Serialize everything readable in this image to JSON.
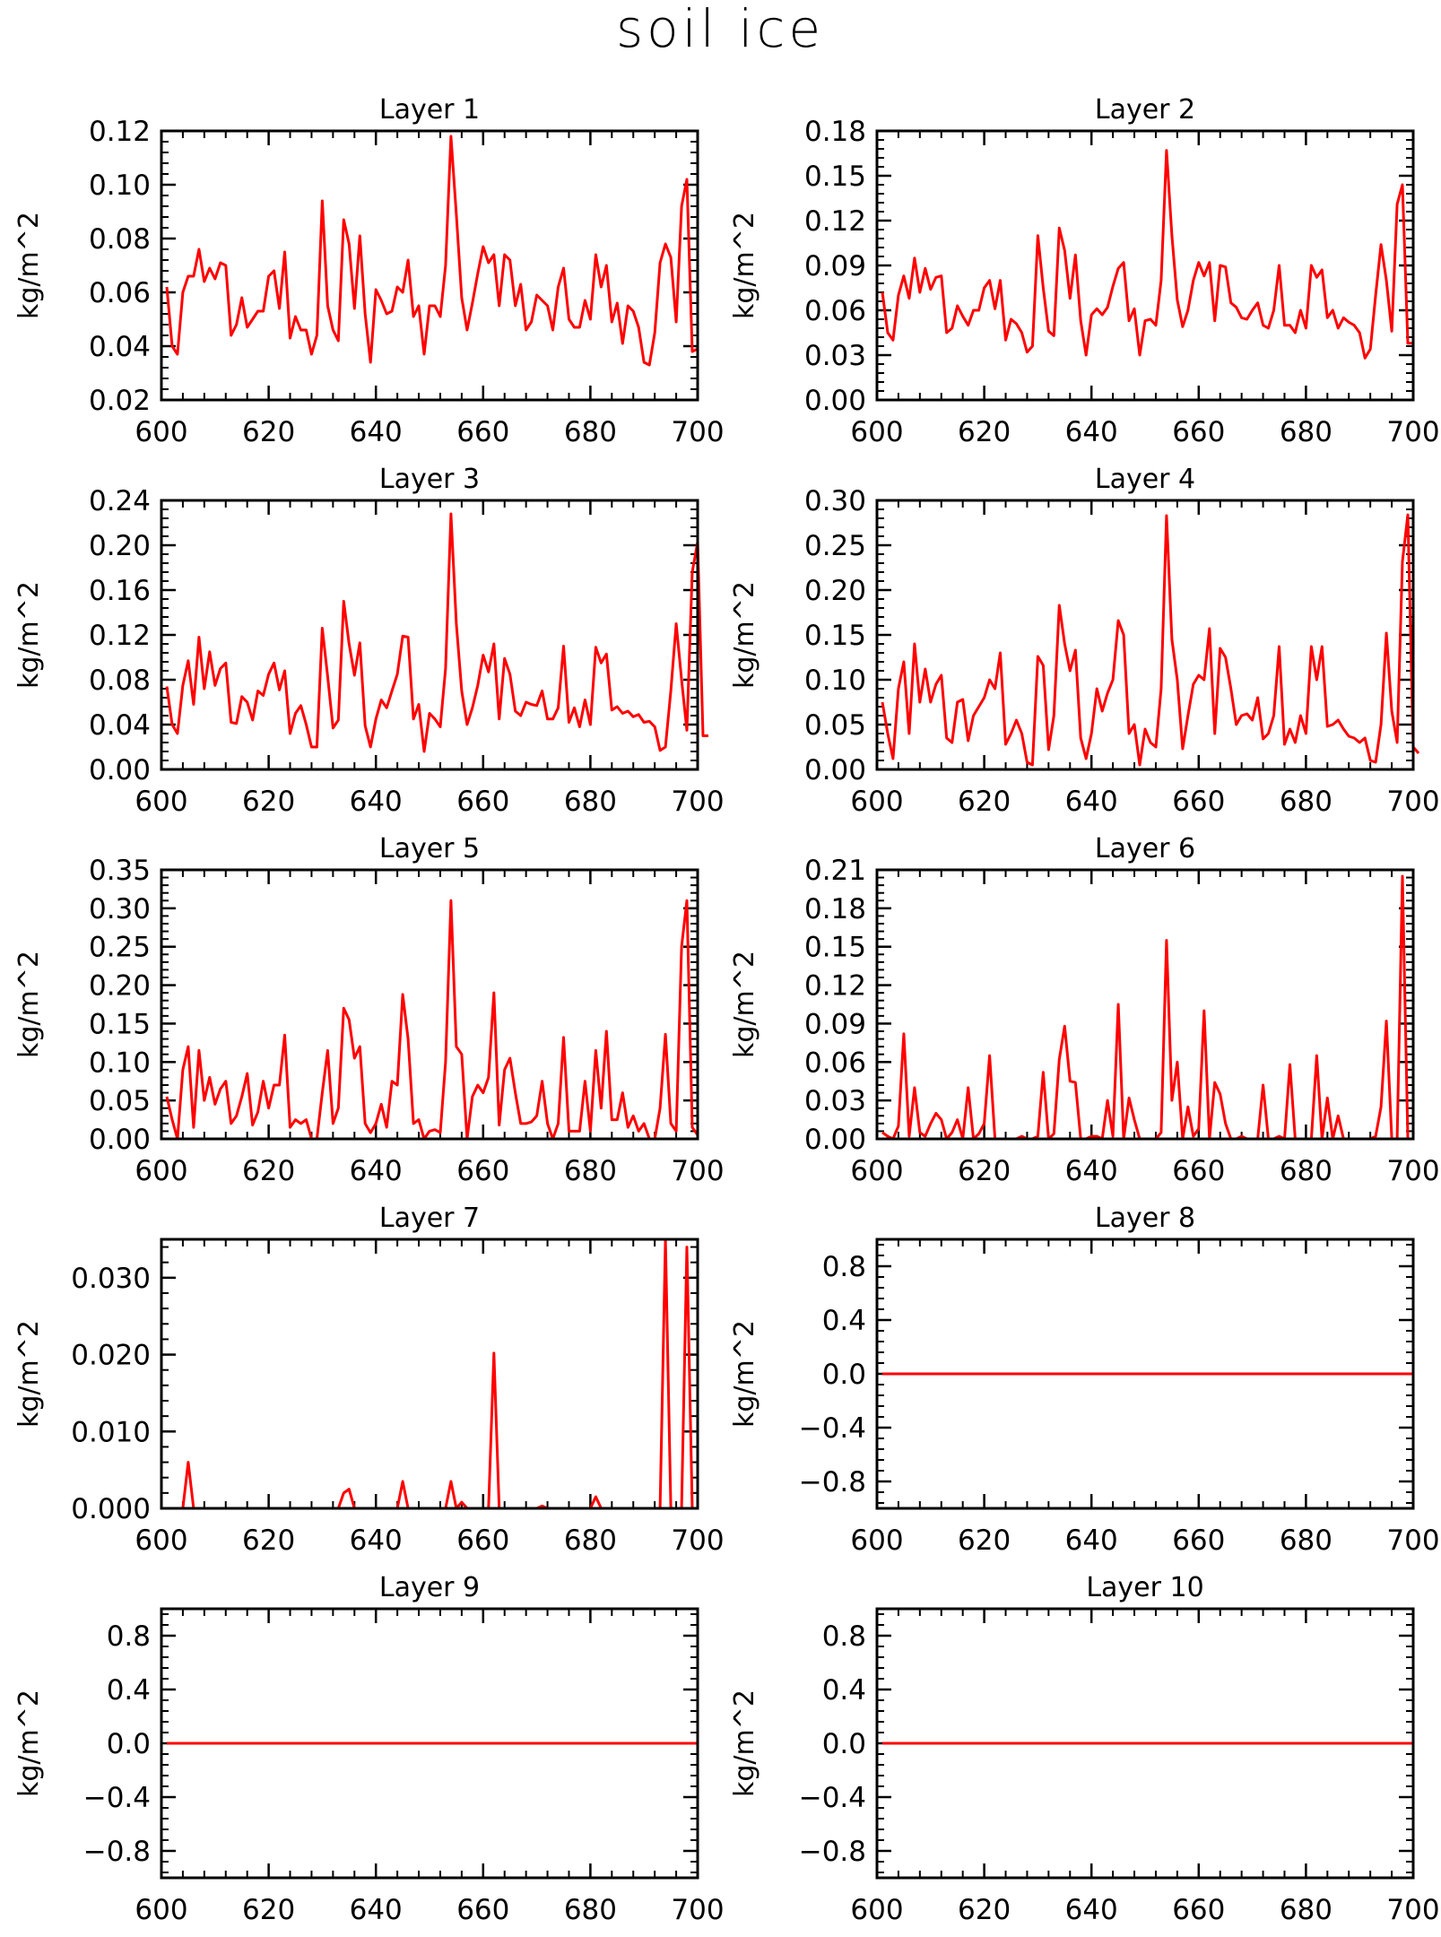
{
  "figure_title": "soil ice",
  "chart_data": [
    {
      "type": "line",
      "title": "Layer 1",
      "ylabel": "kg/m^2",
      "xlim": [
        600,
        700
      ],
      "ylim": [
        0.02,
        0.12
      ],
      "xticks": [
        "600",
        "620",
        "640",
        "660",
        "680",
        "700"
      ],
      "yticks": [
        "0.02",
        "0.04",
        "0.06",
        "0.08",
        "0.10",
        "0.12"
      ],
      "color": "#ff0000",
      "x_start": 601,
      "values": [
        0.062,
        0.04,
        0.037,
        0.06,
        0.066,
        0.066,
        0.076,
        0.064,
        0.069,
        0.065,
        0.071,
        0.07,
        0.044,
        0.048,
        0.058,
        0.047,
        0.05,
        0.053,
        0.053,
        0.066,
        0.068,
        0.054,
        0.075,
        0.043,
        0.051,
        0.046,
        0.046,
        0.037,
        0.044,
        0.094,
        0.055,
        0.046,
        0.042,
        0.087,
        0.078,
        0.054,
        0.081,
        0.052,
        0.034,
        0.061,
        0.057,
        0.052,
        0.053,
        0.062,
        0.06,
        0.072,
        0.051,
        0.055,
        0.037,
        0.055,
        0.055,
        0.051,
        0.07,
        0.118,
        0.089,
        0.058,
        0.046,
        0.056,
        0.067,
        0.077,
        0.071,
        0.074,
        0.055,
        0.074,
        0.072,
        0.055,
        0.063,
        0.046,
        0.049,
        0.059,
        0.057,
        0.055,
        0.046,
        0.062,
        0.069,
        0.05,
        0.047,
        0.047,
        0.057,
        0.05,
        0.074,
        0.062,
        0.07,
        0.049,
        0.056,
        0.041,
        0.055,
        0.053,
        0.047,
        0.034,
        0.033,
        0.045,
        0.071,
        0.078,
        0.073,
        0.049,
        0.092,
        0.102,
        0.038,
        0.039
      ]
    },
    {
      "type": "line",
      "title": "Layer 2",
      "ylabel": "kg/m^2",
      "xlim": [
        600,
        700
      ],
      "ylim": [
        0,
        0.18
      ],
      "xticks": [
        "600",
        "620",
        "640",
        "660",
        "680",
        "700"
      ],
      "yticks": [
        "0.00",
        "0.03",
        "0.06",
        "0.09",
        "0.12",
        "0.15",
        "0.18"
      ],
      "color": "#ff0000",
      "x_start": 601,
      "values": [
        0.072,
        0.045,
        0.04,
        0.07,
        0.083,
        0.068,
        0.095,
        0.072,
        0.088,
        0.074,
        0.082,
        0.083,
        0.045,
        0.048,
        0.063,
        0.056,
        0.05,
        0.06,
        0.06,
        0.075,
        0.08,
        0.061,
        0.08,
        0.04,
        0.054,
        0.051,
        0.045,
        0.032,
        0.036,
        0.11,
        0.075,
        0.046,
        0.043,
        0.115,
        0.1,
        0.068,
        0.097,
        0.053,
        0.03,
        0.057,
        0.061,
        0.057,
        0.062,
        0.076,
        0.088,
        0.092,
        0.053,
        0.061,
        0.03,
        0.053,
        0.054,
        0.05,
        0.08,
        0.167,
        0.11,
        0.067,
        0.049,
        0.06,
        0.08,
        0.092,
        0.083,
        0.092,
        0.053,
        0.09,
        0.089,
        0.065,
        0.062,
        0.055,
        0.054,
        0.06,
        0.065,
        0.05,
        0.048,
        0.06,
        0.09,
        0.05,
        0.05,
        0.045,
        0.06,
        0.048,
        0.09,
        0.082,
        0.087,
        0.055,
        0.06,
        0.048,
        0.055,
        0.052,
        0.05,
        0.045,
        0.028,
        0.034,
        0.07,
        0.104,
        0.08,
        0.046,
        0.131,
        0.144,
        0.038,
        0.038
      ]
    },
    {
      "type": "line",
      "title": "Layer 3",
      "ylabel": "kg/m^2",
      "xlim": [
        600,
        700
      ],
      "ylim": [
        0,
        0.24
      ],
      "xticks": [
        "600",
        "620",
        "640",
        "660",
        "680",
        "700"
      ],
      "yticks": [
        "0.00",
        "0.04",
        "0.08",
        "0.12",
        "0.16",
        "0.20",
        "0.24"
      ],
      "color": "#ff0000",
      "x_start": 601,
      "values": [
        0.074,
        0.04,
        0.032,
        0.075,
        0.097,
        0.058,
        0.118,
        0.072,
        0.105,
        0.075,
        0.09,
        0.095,
        0.042,
        0.041,
        0.065,
        0.06,
        0.044,
        0.07,
        0.066,
        0.085,
        0.095,
        0.071,
        0.088,
        0.032,
        0.05,
        0.057,
        0.04,
        0.02,
        0.02,
        0.126,
        0.083,
        0.037,
        0.044,
        0.15,
        0.112,
        0.084,
        0.113,
        0.039,
        0.02,
        0.045,
        0.062,
        0.055,
        0.07,
        0.085,
        0.119,
        0.118,
        0.045,
        0.058,
        0.016,
        0.05,
        0.045,
        0.038,
        0.09,
        0.228,
        0.13,
        0.07,
        0.04,
        0.055,
        0.075,
        0.102,
        0.087,
        0.112,
        0.045,
        0.099,
        0.085,
        0.052,
        0.048,
        0.06,
        0.058,
        0.057,
        0.07,
        0.045,
        0.045,
        0.055,
        0.11,
        0.042,
        0.055,
        0.038,
        0.062,
        0.04,
        0.109,
        0.095,
        0.103,
        0.053,
        0.056,
        0.05,
        0.052,
        0.047,
        0.049,
        0.042,
        0.043,
        0.038,
        0.017,
        0.02,
        0.07,
        0.13,
        0.08,
        0.035,
        0.176,
        0.203,
        0.03,
        0.03
      ]
    },
    {
      "type": "line",
      "title": "Layer 4",
      "ylabel": "kg/m^2",
      "xlim": [
        600,
        700
      ],
      "ylim": [
        0,
        0.3
      ],
      "xticks": [
        "600",
        "620",
        "640",
        "660",
        "680",
        "700"
      ],
      "yticks": [
        "0.00",
        "0.05",
        "0.10",
        "0.15",
        "0.20",
        "0.25",
        "0.30"
      ],
      "color": "#ff0000",
      "x_start": 601,
      "values": [
        0.075,
        0.04,
        0.012,
        0.09,
        0.12,
        0.04,
        0.14,
        0.075,
        0.112,
        0.075,
        0.095,
        0.105,
        0.035,
        0.03,
        0.075,
        0.078,
        0.032,
        0.06,
        0.07,
        0.08,
        0.1,
        0.09,
        0.13,
        0.028,
        0.04,
        0.055,
        0.04,
        0.008,
        0.005,
        0.126,
        0.116,
        0.022,
        0.06,
        0.183,
        0.14,
        0.11,
        0.133,
        0.035,
        0.012,
        0.04,
        0.09,
        0.065,
        0.085,
        0.1,
        0.166,
        0.15,
        0.04,
        0.05,
        0.005,
        0.045,
        0.03,
        0.025,
        0.09,
        0.283,
        0.145,
        0.1,
        0.023,
        0.06,
        0.095,
        0.105,
        0.1,
        0.157,
        0.04,
        0.135,
        0.125,
        0.09,
        0.05,
        0.06,
        0.062,
        0.055,
        0.08,
        0.034,
        0.04,
        0.06,
        0.137,
        0.028,
        0.045,
        0.03,
        0.06,
        0.04,
        0.137,
        0.1,
        0.137,
        0.048,
        0.05,
        0.055,
        0.045,
        0.037,
        0.035,
        0.03,
        0.035,
        0.01,
        0.008,
        0.05,
        0.152,
        0.065,
        0.03,
        0.232,
        0.284,
        0.025,
        0.018
      ]
    },
    {
      "type": "line",
      "title": "Layer 5",
      "ylabel": "kg/m^2",
      "xlim": [
        600,
        700
      ],
      "ylim": [
        0,
        0.35
      ],
      "xticks": [
        "600",
        "620",
        "640",
        "660",
        "680",
        "700"
      ],
      "yticks": [
        "0.00",
        "0.05",
        "0.10",
        "0.15",
        "0.20",
        "0.25",
        "0.30",
        "0.35"
      ],
      "color": "#ff0000",
      "x_start": 601,
      "values": [
        0.055,
        0.025,
        0.0,
        0.09,
        0.12,
        0.015,
        0.115,
        0.05,
        0.08,
        0.045,
        0.065,
        0.075,
        0.02,
        0.03,
        0.055,
        0.085,
        0.018,
        0.035,
        0.075,
        0.04,
        0.07,
        0.07,
        0.135,
        0.015,
        0.025,
        0.02,
        0.025,
        0.0,
        0.0,
        0.06,
        0.115,
        0.02,
        0.04,
        0.17,
        0.155,
        0.105,
        0.12,
        0.02,
        0.008,
        0.02,
        0.045,
        0.015,
        0.075,
        0.07,
        0.188,
        0.13,
        0.02,
        0.025,
        0.0,
        0.01,
        0.012,
        0.008,
        0.1,
        0.31,
        0.12,
        0.11,
        0.0,
        0.055,
        0.07,
        0.06,
        0.08,
        0.19,
        0.018,
        0.09,
        0.105,
        0.06,
        0.02,
        0.02,
        0.022,
        0.03,
        0.075,
        0.02,
        0.0,
        0.02,
        0.132,
        0.01,
        0.01,
        0.01,
        0.075,
        0.01,
        0.115,
        0.04,
        0.14,
        0.025,
        0.025,
        0.06,
        0.015,
        0.03,
        0.01,
        0.02,
        0.0,
        0.0,
        0.04,
        0.136,
        0.02,
        0.01,
        0.25,
        0.31,
        0.015,
        0.005
      ]
    },
    {
      "type": "line",
      "title": "Layer 6",
      "ylabel": "kg/m^2",
      "xlim": [
        600,
        700
      ],
      "ylim": [
        0,
        0.21
      ],
      "xticks": [
        "600",
        "620",
        "640",
        "660",
        "680",
        "700"
      ],
      "yticks": [
        "0.00",
        "0.03",
        "0.06",
        "0.09",
        "0.12",
        "0.15",
        "0.18",
        "0.21"
      ],
      "color": "#ff0000",
      "x_start": 601,
      "values": [
        0.005,
        0.002,
        0.0,
        0.01,
        0.082,
        0.002,
        0.04,
        0.005,
        0.002,
        0.012,
        0.02,
        0.015,
        0.0,
        0.005,
        0.015,
        0.0,
        0.04,
        0.0,
        0.004,
        0.012,
        0.065,
        0.0,
        0.0,
        0.0,
        0.0,
        0.0,
        0.002,
        0.0,
        0.0,
        0.002,
        0.052,
        0.0,
        0.004,
        0.062,
        0.088,
        0.045,
        0.044,
        0.0,
        0.0,
        0.002,
        0.002,
        0.0,
        0.03,
        0.002,
        0.105,
        0.0,
        0.032,
        0.015,
        0.0,
        0.0,
        0.0,
        0.0,
        0.005,
        0.155,
        0.03,
        0.06,
        0.0,
        0.025,
        0.002,
        0.008,
        0.1,
        0.0,
        0.044,
        0.035,
        0.012,
        0.0,
        0.0,
        0.002,
        0.0,
        0.0,
        0.0,
        0.042,
        0.0,
        0.0,
        0.002,
        0.0,
        0.058,
        0.0,
        0.0,
        0.0,
        0.0,
        0.065,
        0.0,
        0.032,
        0.0,
        0.018,
        0.0,
        0.0,
        0.0,
        0.0,
        0.0,
        0.0,
        0.002,
        0.025,
        0.092,
        0.0,
        0.0,
        0.205,
        0.0,
        0.0
      ]
    },
    {
      "type": "line",
      "title": "Layer 7",
      "ylabel": "kg/m^2",
      "xlim": [
        600,
        700
      ],
      "ylim": [
        0,
        0.035
      ],
      "xticks": [
        "600",
        "620",
        "640",
        "660",
        "680",
        "700"
      ],
      "yticks": [
        "0.000",
        "0.010",
        "0.020",
        "0.030"
      ],
      "color": "#ff0000",
      "x_start": 601,
      "values": [
        0.0,
        0.0,
        0.0,
        0.0,
        0.006,
        0.0,
        0.0,
        0.0,
        0.0,
        0.0,
        0.0,
        0.0,
        0.0,
        0.0,
        0.0,
        0.0,
        0.0,
        0.0,
        0.0,
        0.0,
        0.0,
        0.0,
        0.0,
        0.0,
        0.0,
        0.0,
        0.0,
        0.0,
        0.0,
        0.0,
        0.0,
        0.0,
        0.0,
        0.002,
        0.0025,
        0.0,
        0.0,
        0.0,
        0.0,
        0.0,
        0.0,
        0.0,
        0.0,
        0.0,
        0.0035,
        0.0,
        0.0,
        0.0,
        0.0,
        0.0,
        0.0,
        0.0,
        0.0,
        0.0035,
        0.0,
        0.0008,
        0.0,
        0.0,
        0.0,
        0.0,
        0.0,
        0.0202,
        0.0,
        0.0,
        0.0,
        0.0,
        0.0,
        0.0,
        0.0,
        0.0,
        0.0003,
        0.0,
        0.0,
        0.0,
        0.0,
        0.0,
        0.0,
        0.0,
        0.0,
        0.0,
        0.0015,
        0.0,
        0.0,
        0.0,
        0.0,
        0.0,
        0.0,
        0.0,
        0.0,
        0.0,
        0.0,
        0.0,
        0.0,
        0.035,
        0.0,
        0.0,
        0.0,
        0.034,
        0.0,
        0.0
      ]
    },
    {
      "type": "line",
      "title": "Layer 8",
      "ylabel": "kg/m^2",
      "xlim": [
        600,
        700
      ],
      "ylim": [
        -1,
        1
      ],
      "xticks": [
        "600",
        "620",
        "640",
        "660",
        "680",
        "700"
      ],
      "yticks": [
        "-0.8",
        "-0.4",
        "0.0",
        "0.4",
        "0.8"
      ],
      "color": "#ff0000",
      "x_start": 601,
      "values": [
        0,
        0,
        0,
        0,
        0,
        0,
        0,
        0,
        0,
        0,
        0,
        0,
        0,
        0,
        0,
        0,
        0,
        0,
        0,
        0,
        0,
        0,
        0,
        0,
        0,
        0,
        0,
        0,
        0,
        0,
        0,
        0,
        0,
        0,
        0,
        0,
        0,
        0,
        0,
        0,
        0,
        0,
        0,
        0,
        0,
        0,
        0,
        0,
        0,
        0,
        0,
        0,
        0,
        0,
        0,
        0,
        0,
        0,
        0,
        0,
        0,
        0,
        0,
        0,
        0,
        0,
        0,
        0,
        0,
        0,
        0,
        0,
        0,
        0,
        0,
        0,
        0,
        0,
        0,
        0,
        0,
        0,
        0,
        0,
        0,
        0,
        0,
        0,
        0,
        0,
        0,
        0,
        0,
        0,
        0,
        0,
        0,
        0,
        0,
        0
      ]
    },
    {
      "type": "line",
      "title": "Layer 9",
      "ylabel": "kg/m^2",
      "xlim": [
        600,
        700
      ],
      "ylim": [
        -1,
        1
      ],
      "xticks": [
        "600",
        "620",
        "640",
        "660",
        "680",
        "700"
      ],
      "yticks": [
        "-0.8",
        "-0.4",
        "0.0",
        "0.4",
        "0.8"
      ],
      "color": "#ff0000",
      "x_start": 601,
      "values": [
        0,
        0,
        0,
        0,
        0,
        0,
        0,
        0,
        0,
        0,
        0,
        0,
        0,
        0,
        0,
        0,
        0,
        0,
        0,
        0,
        0,
        0,
        0,
        0,
        0,
        0,
        0,
        0,
        0,
        0,
        0,
        0,
        0,
        0,
        0,
        0,
        0,
        0,
        0,
        0,
        0,
        0,
        0,
        0,
        0,
        0,
        0,
        0,
        0,
        0,
        0,
        0,
        0,
        0,
        0,
        0,
        0,
        0,
        0,
        0,
        0,
        0,
        0,
        0,
        0,
        0,
        0,
        0,
        0,
        0,
        0,
        0,
        0,
        0,
        0,
        0,
        0,
        0,
        0,
        0,
        0,
        0,
        0,
        0,
        0,
        0,
        0,
        0,
        0,
        0,
        0,
        0,
        0,
        0,
        0,
        0,
        0,
        0,
        0,
        0
      ]
    },
    {
      "type": "line",
      "title": "Layer 10",
      "ylabel": "kg/m^2",
      "xlim": [
        600,
        700
      ],
      "ylim": [
        -1,
        1
      ],
      "xticks": [
        "600",
        "620",
        "640",
        "660",
        "680",
        "700"
      ],
      "yticks": [
        "-0.8",
        "-0.4",
        "0.0",
        "0.4",
        "0.8"
      ],
      "color": "#ff0000",
      "x_start": 601,
      "values": [
        0,
        0,
        0,
        0,
        0,
        0,
        0,
        0,
        0,
        0,
        0,
        0,
        0,
        0,
        0,
        0,
        0,
        0,
        0,
        0,
        0,
        0,
        0,
        0,
        0,
        0,
        0,
        0,
        0,
        0,
        0,
        0,
        0,
        0,
        0,
        0,
        0,
        0,
        0,
        0,
        0,
        0,
        0,
        0,
        0,
        0,
        0,
        0,
        0,
        0,
        0,
        0,
        0,
        0,
        0,
        0,
        0,
        0,
        0,
        0,
        0,
        0,
        0,
        0,
        0,
        0,
        0,
        0,
        0,
        0,
        0,
        0,
        0,
        0,
        0,
        0,
        0,
        0,
        0,
        0,
        0,
        0,
        0,
        0,
        0,
        0,
        0,
        0,
        0,
        0,
        0,
        0,
        0,
        0,
        0,
        0,
        0,
        0,
        0,
        0
      ]
    }
  ]
}
